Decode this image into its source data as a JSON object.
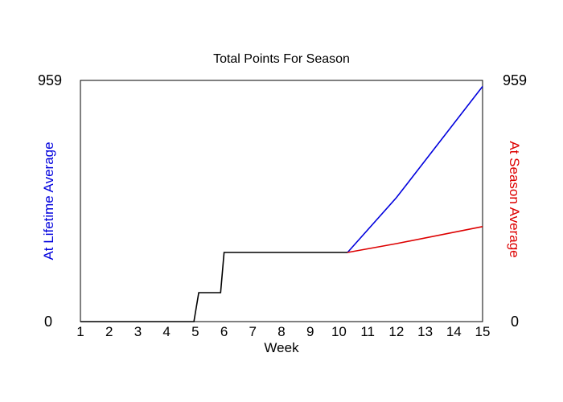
{
  "chart_data": {
    "type": "line",
    "title": "Total Points For Season",
    "xlabel": "Week",
    "ylabel_left": "At Lifetime Average",
    "ylabel_right": "At Season Average",
    "xlim": [
      1,
      15
    ],
    "ylim": [
      0,
      959
    ],
    "x_ticks": [
      "1",
      "2",
      "3",
      "4",
      "5",
      "6",
      "7",
      "8",
      "9",
      "10",
      "11",
      "12",
      "13",
      "14",
      "15"
    ],
    "y_ticks_left": [
      "0",
      "959"
    ],
    "y_ticks_right": [
      "0",
      "959"
    ],
    "colors": {
      "actual": "#000000",
      "lifetime": "#0000dd",
      "season": "#dd0000"
    },
    "series": [
      {
        "key": "actual",
        "points": [
          [
            1,
            0
          ],
          [
            4.95,
            0
          ],
          [
            5.12,
            115
          ],
          [
            5.88,
            115
          ],
          [
            6.0,
            275
          ],
          [
            10.3,
            275
          ]
        ]
      },
      {
        "key": "lifetime",
        "points": [
          [
            10.3,
            275
          ],
          [
            12,
            493
          ],
          [
            15,
            935
          ]
        ]
      },
      {
        "key": "season",
        "points": [
          [
            10.3,
            275
          ],
          [
            12,
            310
          ],
          [
            15,
            378
          ]
        ]
      }
    ],
    "grid": false,
    "legend": "none"
  }
}
